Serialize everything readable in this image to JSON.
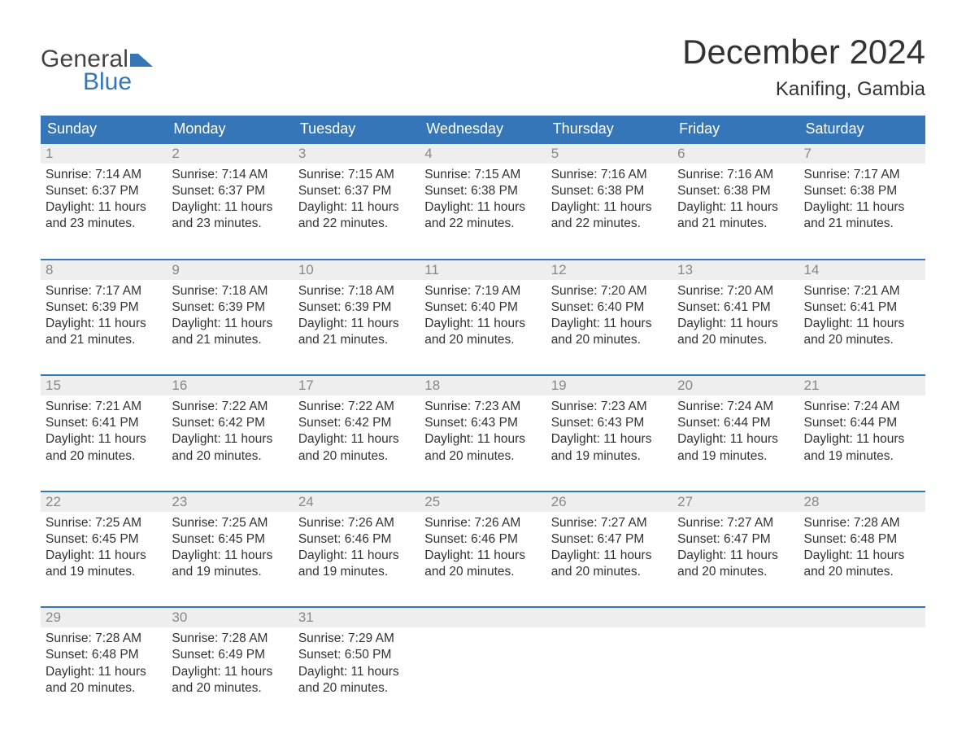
{
  "logo": {
    "text1": "General",
    "text2": "Blue"
  },
  "title": "December 2024",
  "location": "Kanifing, Gambia",
  "colors": {
    "header_bg": "#3576b8",
    "header_text": "#ffffff",
    "daynum_bg": "#eeeeee",
    "daynum_text": "#888888",
    "body_text": "#333333",
    "week_border": "#3576b8",
    "logo_gray": "#444444",
    "logo_blue": "#3576b8",
    "page_bg": "#ffffff"
  },
  "day_names": [
    "Sunday",
    "Monday",
    "Tuesday",
    "Wednesday",
    "Thursday",
    "Friday",
    "Saturday"
  ],
  "weeks": [
    {
      "cells": [
        {
          "num": "1",
          "sunrise": "Sunrise: 7:14 AM",
          "sunset": "Sunset: 6:37 PM",
          "d1": "Daylight: 11 hours",
          "d2": "and 23 minutes."
        },
        {
          "num": "2",
          "sunrise": "Sunrise: 7:14 AM",
          "sunset": "Sunset: 6:37 PM",
          "d1": "Daylight: 11 hours",
          "d2": "and 23 minutes."
        },
        {
          "num": "3",
          "sunrise": "Sunrise: 7:15 AM",
          "sunset": "Sunset: 6:37 PM",
          "d1": "Daylight: 11 hours",
          "d2": "and 22 minutes."
        },
        {
          "num": "4",
          "sunrise": "Sunrise: 7:15 AM",
          "sunset": "Sunset: 6:38 PM",
          "d1": "Daylight: 11 hours",
          "d2": "and 22 minutes."
        },
        {
          "num": "5",
          "sunrise": "Sunrise: 7:16 AM",
          "sunset": "Sunset: 6:38 PM",
          "d1": "Daylight: 11 hours",
          "d2": "and 22 minutes."
        },
        {
          "num": "6",
          "sunrise": "Sunrise: 7:16 AM",
          "sunset": "Sunset: 6:38 PM",
          "d1": "Daylight: 11 hours",
          "d2": "and 21 minutes."
        },
        {
          "num": "7",
          "sunrise": "Sunrise: 7:17 AM",
          "sunset": "Sunset: 6:38 PM",
          "d1": "Daylight: 11 hours",
          "d2": "and 21 minutes."
        }
      ]
    },
    {
      "cells": [
        {
          "num": "8",
          "sunrise": "Sunrise: 7:17 AM",
          "sunset": "Sunset: 6:39 PM",
          "d1": "Daylight: 11 hours",
          "d2": "and 21 minutes."
        },
        {
          "num": "9",
          "sunrise": "Sunrise: 7:18 AM",
          "sunset": "Sunset: 6:39 PM",
          "d1": "Daylight: 11 hours",
          "d2": "and 21 minutes."
        },
        {
          "num": "10",
          "sunrise": "Sunrise: 7:18 AM",
          "sunset": "Sunset: 6:39 PM",
          "d1": "Daylight: 11 hours",
          "d2": "and 21 minutes."
        },
        {
          "num": "11",
          "sunrise": "Sunrise: 7:19 AM",
          "sunset": "Sunset: 6:40 PM",
          "d1": "Daylight: 11 hours",
          "d2": "and 20 minutes."
        },
        {
          "num": "12",
          "sunrise": "Sunrise: 7:20 AM",
          "sunset": "Sunset: 6:40 PM",
          "d1": "Daylight: 11 hours",
          "d2": "and 20 minutes."
        },
        {
          "num": "13",
          "sunrise": "Sunrise: 7:20 AM",
          "sunset": "Sunset: 6:41 PM",
          "d1": "Daylight: 11 hours",
          "d2": "and 20 minutes."
        },
        {
          "num": "14",
          "sunrise": "Sunrise: 7:21 AM",
          "sunset": "Sunset: 6:41 PM",
          "d1": "Daylight: 11 hours",
          "d2": "and 20 minutes."
        }
      ]
    },
    {
      "cells": [
        {
          "num": "15",
          "sunrise": "Sunrise: 7:21 AM",
          "sunset": "Sunset: 6:41 PM",
          "d1": "Daylight: 11 hours",
          "d2": "and 20 minutes."
        },
        {
          "num": "16",
          "sunrise": "Sunrise: 7:22 AM",
          "sunset": "Sunset: 6:42 PM",
          "d1": "Daylight: 11 hours",
          "d2": "and 20 minutes."
        },
        {
          "num": "17",
          "sunrise": "Sunrise: 7:22 AM",
          "sunset": "Sunset: 6:42 PM",
          "d1": "Daylight: 11 hours",
          "d2": "and 20 minutes."
        },
        {
          "num": "18",
          "sunrise": "Sunrise: 7:23 AM",
          "sunset": "Sunset: 6:43 PM",
          "d1": "Daylight: 11 hours",
          "d2": "and 20 minutes."
        },
        {
          "num": "19",
          "sunrise": "Sunrise: 7:23 AM",
          "sunset": "Sunset: 6:43 PM",
          "d1": "Daylight: 11 hours",
          "d2": "and 19 minutes."
        },
        {
          "num": "20",
          "sunrise": "Sunrise: 7:24 AM",
          "sunset": "Sunset: 6:44 PM",
          "d1": "Daylight: 11 hours",
          "d2": "and 19 minutes."
        },
        {
          "num": "21",
          "sunrise": "Sunrise: 7:24 AM",
          "sunset": "Sunset: 6:44 PM",
          "d1": "Daylight: 11 hours",
          "d2": "and 19 minutes."
        }
      ]
    },
    {
      "cells": [
        {
          "num": "22",
          "sunrise": "Sunrise: 7:25 AM",
          "sunset": "Sunset: 6:45 PM",
          "d1": "Daylight: 11 hours",
          "d2": "and 19 minutes."
        },
        {
          "num": "23",
          "sunrise": "Sunrise: 7:25 AM",
          "sunset": "Sunset: 6:45 PM",
          "d1": "Daylight: 11 hours",
          "d2": "and 19 minutes."
        },
        {
          "num": "24",
          "sunrise": "Sunrise: 7:26 AM",
          "sunset": "Sunset: 6:46 PM",
          "d1": "Daylight: 11 hours",
          "d2": "and 19 minutes."
        },
        {
          "num": "25",
          "sunrise": "Sunrise: 7:26 AM",
          "sunset": "Sunset: 6:46 PM",
          "d1": "Daylight: 11 hours",
          "d2": "and 20 minutes."
        },
        {
          "num": "26",
          "sunrise": "Sunrise: 7:27 AM",
          "sunset": "Sunset: 6:47 PM",
          "d1": "Daylight: 11 hours",
          "d2": "and 20 minutes."
        },
        {
          "num": "27",
          "sunrise": "Sunrise: 7:27 AM",
          "sunset": "Sunset: 6:47 PM",
          "d1": "Daylight: 11 hours",
          "d2": "and 20 minutes."
        },
        {
          "num": "28",
          "sunrise": "Sunrise: 7:28 AM",
          "sunset": "Sunset: 6:48 PM",
          "d1": "Daylight: 11 hours",
          "d2": "and 20 minutes."
        }
      ]
    },
    {
      "cells": [
        {
          "num": "29",
          "sunrise": "Sunrise: 7:28 AM",
          "sunset": "Sunset: 6:48 PM",
          "d1": "Daylight: 11 hours",
          "d2": "and 20 minutes."
        },
        {
          "num": "30",
          "sunrise": "Sunrise: 7:28 AM",
          "sunset": "Sunset: 6:49 PM",
          "d1": "Daylight: 11 hours",
          "d2": "and 20 minutes."
        },
        {
          "num": "31",
          "sunrise": "Sunrise: 7:29 AM",
          "sunset": "Sunset: 6:50 PM",
          "d1": "Daylight: 11 hours",
          "d2": "and 20 minutes."
        },
        {
          "num": "",
          "sunrise": "",
          "sunset": "",
          "d1": "",
          "d2": ""
        },
        {
          "num": "",
          "sunrise": "",
          "sunset": "",
          "d1": "",
          "d2": ""
        },
        {
          "num": "",
          "sunrise": "",
          "sunset": "",
          "d1": "",
          "d2": ""
        },
        {
          "num": "",
          "sunrise": "",
          "sunset": "",
          "d1": "",
          "d2": ""
        }
      ]
    }
  ]
}
